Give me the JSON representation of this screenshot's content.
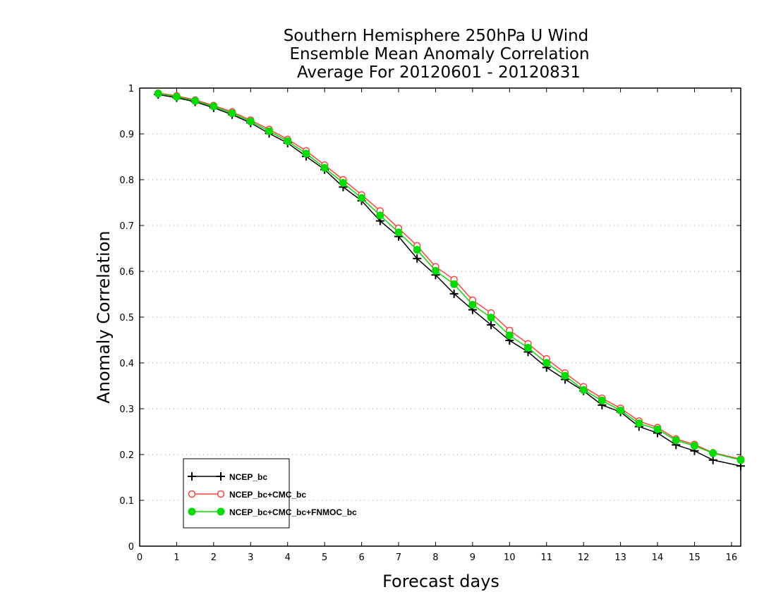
{
  "chart_data": {
    "type": "line",
    "title": [
      "Southern Hemisphere 250hPa U Wind",
      "Ensemble Mean Anomaly Correlation",
      "Average For 20120601 - 20120831"
    ],
    "xlabel": "Forecast days",
    "ylabel": "Anomaly Correlation",
    "xlim": [
      0,
      16.25
    ],
    "ylim": [
      0,
      1
    ],
    "x_ticks": [
      0,
      1,
      2,
      3,
      4,
      5,
      6,
      7,
      8,
      9,
      10,
      11,
      12,
      13,
      14,
      15,
      16
    ],
    "y_ticks": [
      0,
      0.1,
      0.2,
      0.3,
      0.4,
      0.5,
      0.6,
      0.7,
      0.8,
      0.9,
      1
    ],
    "y_tick_labels": [
      "0",
      "0.1",
      "0.2",
      "0.3",
      "0.4",
      "0.5",
      "0.6",
      "0.7",
      "0.8",
      "0.9",
      "1"
    ],
    "grid": "horizontal dotted",
    "legend_position": "bottom-left",
    "x": [
      0.5,
      1,
      1.5,
      2,
      2.5,
      3,
      3.5,
      4,
      4.5,
      5,
      5.5,
      6,
      6.5,
      7,
      7.5,
      8,
      8.5,
      9,
      9.5,
      10,
      10.5,
      11,
      11.5,
      12,
      12.5,
      13,
      13.5,
      14,
      14.5,
      15,
      15.5,
      16.25
    ],
    "series": [
      {
        "name": "NCEP_bc",
        "color": "#000000",
        "marker": "plus",
        "values": [
          0.986,
          0.979,
          0.97,
          0.957,
          0.942,
          0.924,
          0.901,
          0.88,
          0.851,
          0.822,
          0.784,
          0.754,
          0.71,
          0.676,
          0.628,
          0.592,
          0.551,
          0.516,
          0.483,
          0.449,
          0.424,
          0.39,
          0.364,
          0.339,
          0.308,
          0.293,
          0.261,
          0.247,
          0.221,
          0.208,
          0.188,
          0.175
        ]
      },
      {
        "name": "NCEP_bc+CMC_bc",
        "color": "#ff4040",
        "marker": "open-circle",
        "values": [
          0.989,
          0.983,
          0.974,
          0.962,
          0.948,
          0.93,
          0.91,
          0.888,
          0.863,
          0.832,
          0.8,
          0.767,
          0.732,
          0.694,
          0.656,
          0.61,
          0.582,
          0.537,
          0.509,
          0.471,
          0.442,
          0.409,
          0.378,
          0.348,
          0.323,
          0.301,
          0.273,
          0.259,
          0.234,
          0.222,
          0.204,
          0.19
        ]
      },
      {
        "name": "NCEP_bc+CMC_bc+FNMOC_bc",
        "color": "#00dd00",
        "marker": "filled-circle",
        "values": [
          0.988,
          0.981,
          0.972,
          0.96,
          0.945,
          0.927,
          0.906,
          0.884,
          0.857,
          0.826,
          0.793,
          0.76,
          0.722,
          0.685,
          0.647,
          0.601,
          0.572,
          0.527,
          0.499,
          0.46,
          0.433,
          0.4,
          0.372,
          0.341,
          0.318,
          0.296,
          0.268,
          0.255,
          0.231,
          0.219,
          0.203,
          0.188
        ]
      }
    ]
  }
}
